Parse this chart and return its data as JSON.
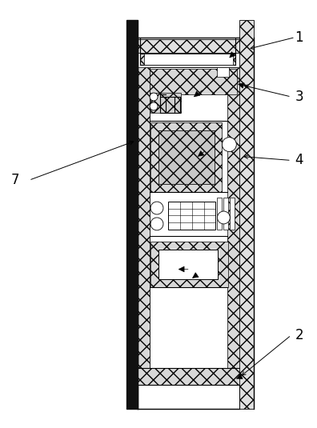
{
  "bg_color": "#ffffff",
  "lc": "#000000",
  "fig_width": 3.96,
  "fig_height": 5.35,
  "dpi": 100
}
